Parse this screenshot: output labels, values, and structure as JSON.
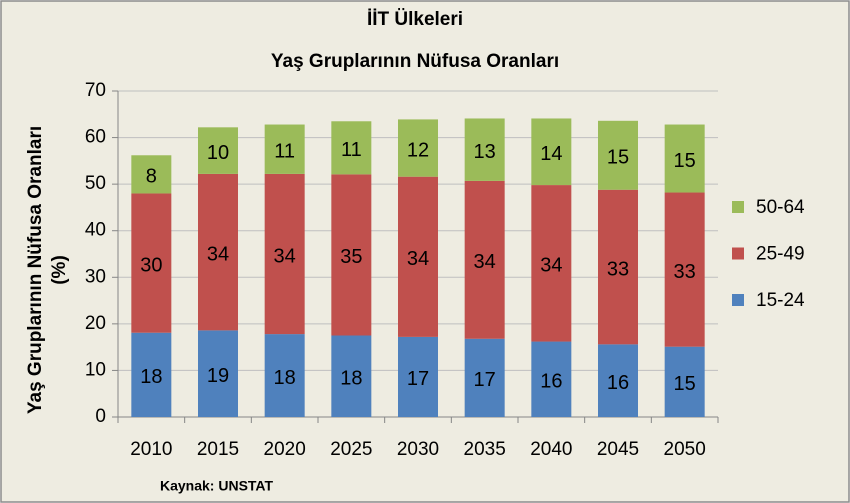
{
  "chart_data": {
    "type": "stacked_bar",
    "title": "İİT Ülkeleri",
    "subtitle": "Yaş Gruplarının Nüfusa Oranları",
    "ylabel": [
      "Yaş Gruplarının Nüfusa Oranları",
      "(%)"
    ],
    "source": "Kaynak: UNSTAT",
    "categories": [
      "2010",
      "2015",
      "2020",
      "2025",
      "2030",
      "2035",
      "2040",
      "2045",
      "2050"
    ],
    "series": [
      {
        "name": "15-24",
        "color": "#4f81bd",
        "values": [
          18.1,
          18.6,
          17.8,
          17.5,
          17.2,
          16.8,
          16.2,
          15.6,
          15.1
        ],
        "value_labels": [
          "18",
          "19",
          "18",
          "18",
          "17",
          "17",
          "16",
          "16",
          "15"
        ]
      },
      {
        "name": "25-49",
        "color": "#c0504d",
        "values": [
          29.9,
          33.6,
          34.4,
          34.6,
          34.4,
          33.9,
          33.6,
          33.2,
          33.1
        ],
        "value_labels": [
          "30",
          "34",
          "34",
          "35",
          "34",
          "34",
          "34",
          "33",
          "33"
        ]
      },
      {
        "name": "50-64",
        "color": "#9bbb59",
        "values": [
          8.2,
          10.0,
          10.6,
          11.4,
          12.3,
          13.4,
          14.3,
          14.8,
          14.6
        ],
        "value_labels": [
          "8",
          "10",
          "11",
          "11",
          "12",
          "13",
          "14",
          "15",
          "15"
        ]
      }
    ],
    "ylim": [
      0,
      70
    ],
    "yticks": [
      0,
      10,
      20,
      30,
      40,
      50,
      60,
      70
    ],
    "grid": true,
    "legend": "right"
  }
}
